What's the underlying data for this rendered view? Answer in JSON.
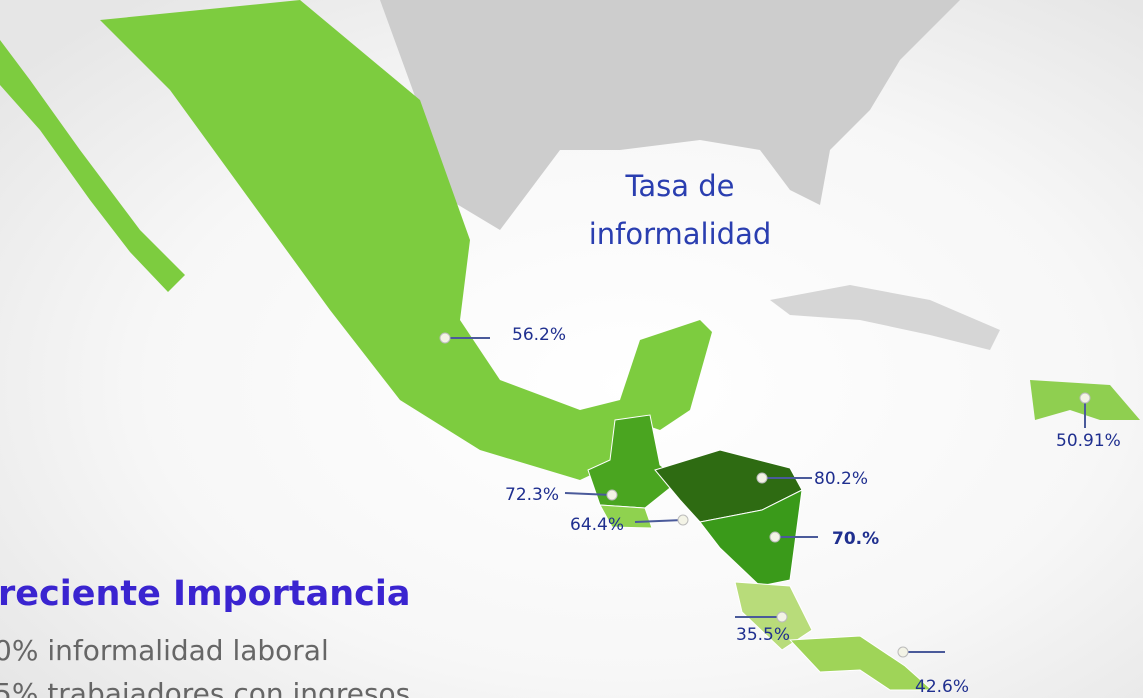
{
  "map": {
    "title": [
      "Tasa de",
      "informalidad"
    ],
    "labels": [
      "56.2%",
      "72.3%",
      "64.4%",
      "80.2%",
      "70.%",
      "35.5%",
      "42.6%",
      "50.91%"
    ],
    "heading": "reciente Importancia",
    "lines": [
      "0% informalidad laboral",
      "5% trabajadores con ingresos"
    ]
  }
}
